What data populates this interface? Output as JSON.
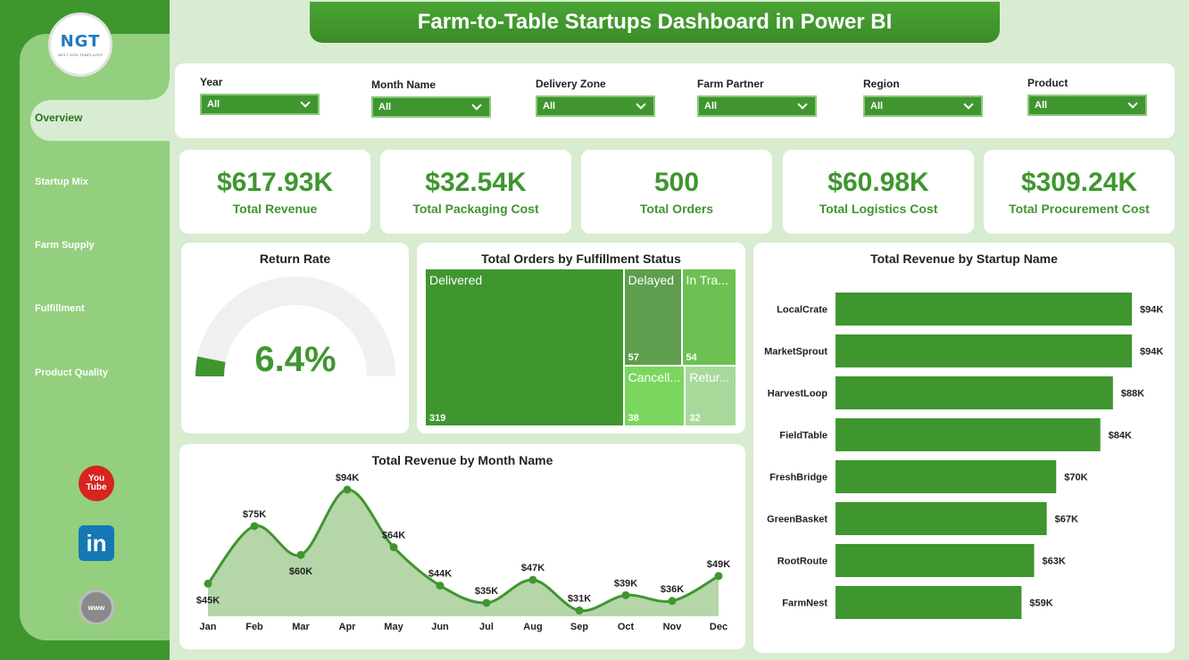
{
  "header": {
    "title": "Farm-to-Table Startups Dashboard in Power BI"
  },
  "logo": {
    "text": "NGT",
    "tagline": "NEXT GEN TEMPLATES"
  },
  "sidebar": {
    "items": [
      {
        "label": "Overview",
        "active": true
      },
      {
        "label": "Startup Mix"
      },
      {
        "label": "Farm Supply"
      },
      {
        "label": "Fulfillment"
      },
      {
        "label": "Product Quality"
      }
    ],
    "social": {
      "youtube_top": "You",
      "youtube_bottom": "Tube",
      "linkedin": "in",
      "web": "www"
    }
  },
  "filters": [
    {
      "label": "Year",
      "value": "All"
    },
    {
      "label": "Month Name",
      "value": "All"
    },
    {
      "label": "Delivery Zone",
      "value": "All"
    },
    {
      "label": "Farm Partner",
      "value": "All"
    },
    {
      "label": "Region",
      "value": "All"
    },
    {
      "label": "Product",
      "value": "All"
    }
  ],
  "kpis": [
    {
      "value": "$617.93K",
      "label": "Total Revenue"
    },
    {
      "value": "$32.54K",
      "label": "Total Packaging Cost"
    },
    {
      "value": "500",
      "label": "Total Orders"
    },
    {
      "value": "$60.98K",
      "label": "Total Logistics Cost"
    },
    {
      "value": "$309.24K",
      "label": "Total Procurement Cost"
    }
  ],
  "colors": {
    "brand": "#3f962f",
    "light_green": "#93cf7e",
    "background": "#d8ecd2"
  },
  "chart_data": [
    {
      "type": "gauge",
      "title": "Return Rate",
      "value": 6.4,
      "value_label": "6.4%",
      "range": [
        0,
        100
      ]
    },
    {
      "type": "treemap",
      "title": "Total Orders by Fulfillment Status",
      "items": [
        {
          "name": "Delivered",
          "value": 319,
          "color": "#3f962f"
        },
        {
          "name": "Delayed",
          "value": 57,
          "color": "#5e9e4e"
        },
        {
          "name": "In Tra...",
          "value": 54,
          "color": "#6cc152"
        },
        {
          "name": "Cancell...",
          "value": 38,
          "color": "#7bd65f"
        },
        {
          "name": "Retur...",
          "value": 32,
          "color": "#a8d99a"
        }
      ]
    },
    {
      "type": "bar",
      "orientation": "horizontal",
      "title": "Total Revenue by Startup Name",
      "categories": [
        "LocalCrate",
        "MarketSprout",
        "HarvestLoop",
        "FieldTable",
        "FreshBridge",
        "GreenBasket",
        "RootRoute",
        "FarmNest"
      ],
      "values": [
        94,
        94,
        88,
        84,
        70,
        67,
        63,
        59
      ],
      "labels": [
        "$94K",
        "$94K",
        "$88K",
        "$84K",
        "$70K",
        "$67K",
        "$63K",
        "$59K"
      ],
      "unit": "K",
      "xlim": [
        0,
        94
      ]
    },
    {
      "type": "area",
      "title": "Total Revenue by Month Name",
      "categories": [
        "Jan",
        "Feb",
        "Mar",
        "Apr",
        "May",
        "Jun",
        "Jul",
        "Aug",
        "Sep",
        "Oct",
        "Nov",
        "Dec"
      ],
      "values": [
        45,
        75,
        60,
        94,
        64,
        44,
        35,
        47,
        31,
        39,
        36,
        49
      ],
      "labels": [
        "$45K",
        "$75K",
        "$60K",
        "$94K",
        "$64K",
        "$44K",
        "$35K",
        "$47K",
        "$31K",
        "$39K",
        "$36K",
        "$49K"
      ],
      "ylim": [
        28,
        94
      ]
    }
  ]
}
